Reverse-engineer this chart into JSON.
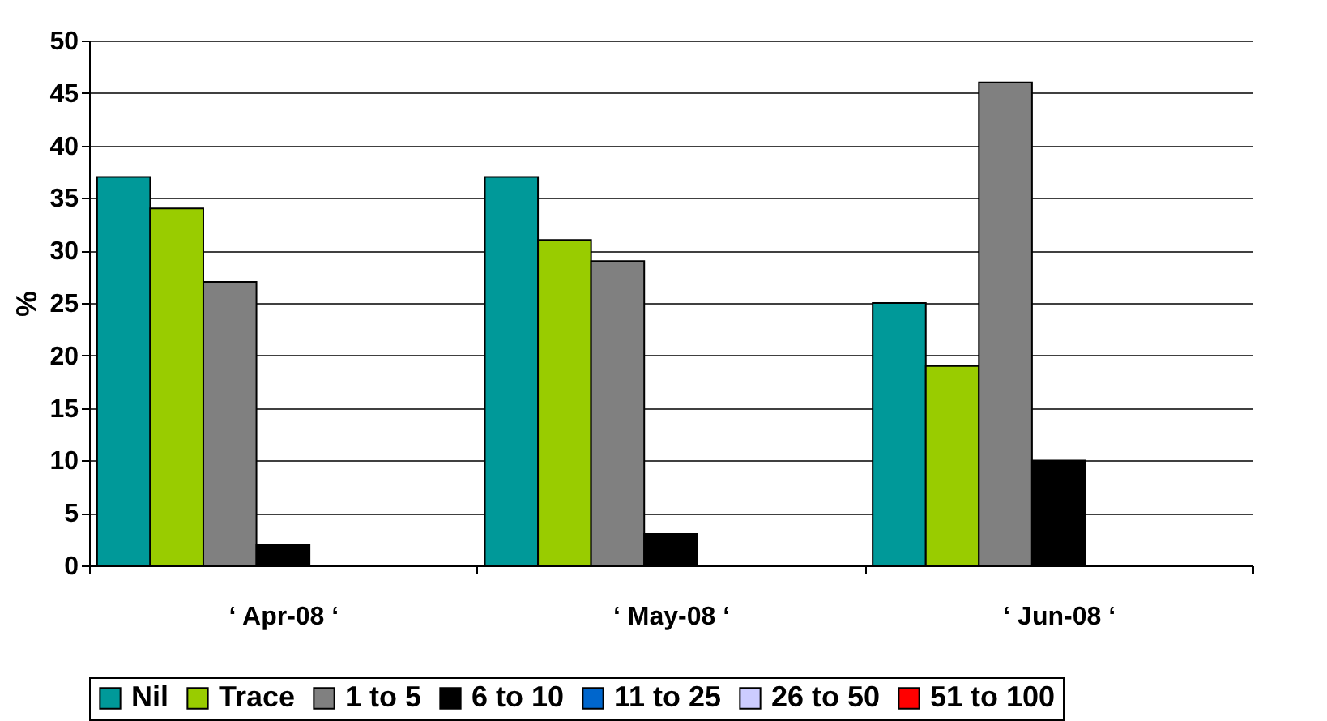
{
  "chart_data": {
    "type": "bar",
    "ylabel": "%",
    "categories": [
      "‘ Apr-08 ‘",
      "‘ May-08 ‘",
      "‘ Jun-08 ‘"
    ],
    "series": [
      {
        "name": "Nil",
        "color": "#009999",
        "values": [
          37,
          37,
          25
        ]
      },
      {
        "name": "Trace",
        "color": "#99cc00",
        "values": [
          34,
          31,
          19
        ]
      },
      {
        "name": "1 to 5",
        "color": "#808080",
        "values": [
          27,
          29,
          46
        ]
      },
      {
        "name": "6 to 10",
        "color": "#000000",
        "values": [
          2,
          3,
          10
        ]
      },
      {
        "name": "11 to 25",
        "color": "#0066cc",
        "values": [
          0,
          0,
          0
        ]
      },
      {
        "name": "26 to 50",
        "color": "#ccccff",
        "values": [
          0,
          0,
          0
        ]
      },
      {
        "name": "51 to 100",
        "color": "#ff0000",
        "values": [
          0,
          0,
          0
        ]
      }
    ],
    "ylim": [
      0,
      50
    ],
    "yticks": [
      0,
      5,
      10,
      15,
      20,
      25,
      30,
      35,
      40,
      45,
      50
    ],
    "grid": "y",
    "legend": "bottom"
  }
}
